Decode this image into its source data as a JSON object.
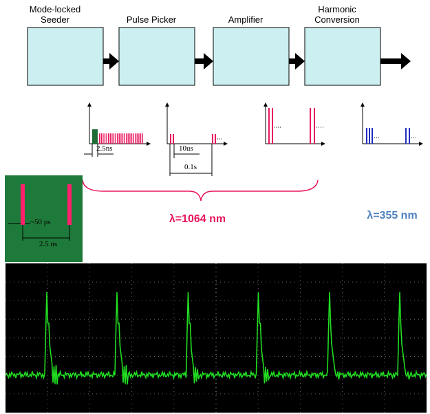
{
  "stages": [
    {
      "lines": [
        "Mode-locked",
        "Seeder"
      ]
    },
    {
      "lines": [
        "Pulse Picker"
      ]
    },
    {
      "lines": [
        "Amplifier"
      ]
    },
    {
      "lines": [
        "Harmonic",
        "Conversion"
      ]
    }
  ],
  "annotations": {
    "seeder_period": "2.5ns",
    "picker_period": "10us",
    "picker_burst": "0.1s",
    "pulse_width": "~50 ps",
    "pulse_period": "2.5 ns"
  },
  "wavelengths": {
    "fundamental": "λ=1064 nm",
    "harmonic": "λ=355 nm"
  }
}
